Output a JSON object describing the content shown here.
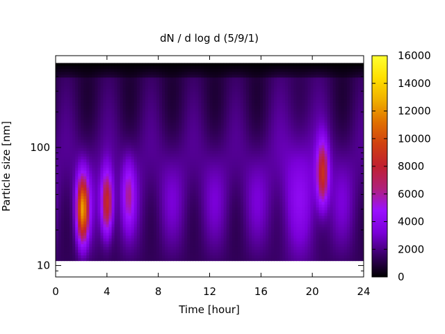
{
  "chart_data": {
    "type": "heatmap",
    "title": "dN / d log d (5/9/1)",
    "xlabel": "Time [hour]",
    "ylabel": "Particle size [nm]",
    "xlim": [
      0,
      24
    ],
    "x_ticks": [
      0,
      4,
      8,
      12,
      16,
      20,
      24
    ],
    "x_tick_labels": [
      "0",
      "4",
      "8",
      "12",
      "16",
      "20",
      "24"
    ],
    "ylim": [
      8,
      600
    ],
    "y_scale": "log",
    "y_ticks": [
      10,
      100
    ],
    "y_tick_labels": [
      "10",
      "100"
    ],
    "data_range_nm": [
      11,
      520
    ],
    "colorbar": {
      "range": [
        0,
        16000
      ],
      "ticks": [
        0,
        2000,
        4000,
        6000,
        8000,
        10000,
        12000,
        14000,
        16000
      ],
      "tick_labels": [
        "0",
        "2000",
        "4000",
        "6000",
        "8000",
        "10000",
        "12000",
        "14000",
        "16000"
      ],
      "palette": [
        "#000000",
        "#3a0068",
        "#7a00d8",
        "#9a10ff",
        "#b0207a",
        "#c02030",
        "#d04010",
        "#e07000",
        "#f0b000",
        "#ffe000",
        "#ffff30"
      ]
    },
    "grid": false,
    "features": [
      {
        "time_hour": 2.1,
        "diameter_nm": 30,
        "value": 12000
      },
      {
        "time_hour": 4.0,
        "diameter_nm": 34,
        "value": 9500
      },
      {
        "time_hour": 5.7,
        "diameter_nm": 40,
        "value": 5500
      },
      {
        "time_hour": 20.8,
        "diameter_nm": 60,
        "value": 9000
      }
    ]
  }
}
